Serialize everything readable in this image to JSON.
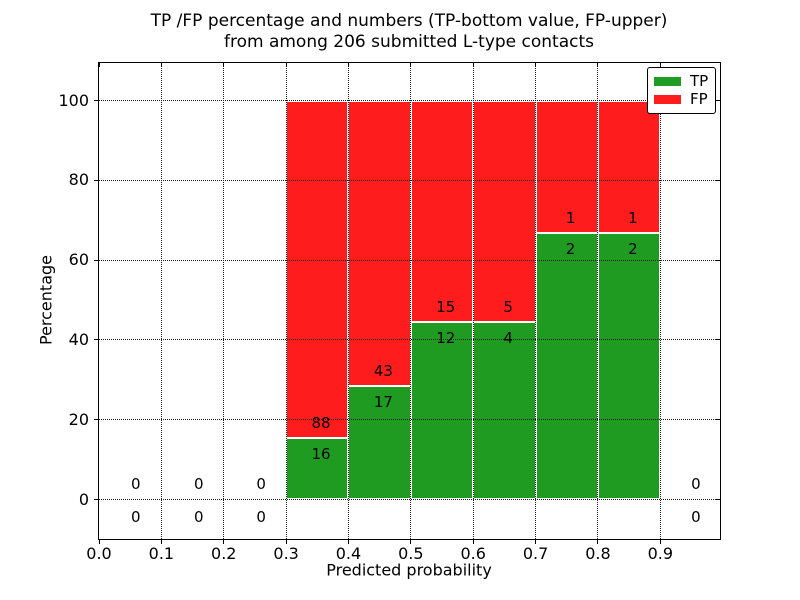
{
  "chart_data": {
    "type": "bar",
    "stacked": true,
    "title_line1": "TP /FP percentage and numbers (TP-bottom value, FP-upper)",
    "title_line2": "from among 206 submitted L-type contacts",
    "xlabel": "Predicted probability",
    "ylabel": "Percentage",
    "x_ticks": [
      "0.0",
      "0.1",
      "0.2",
      "0.3",
      "0.4",
      "0.5",
      "0.6",
      "0.7",
      "0.8",
      "0.9"
    ],
    "y_ticks": [
      "0",
      "20",
      "40",
      "60",
      "80",
      "100"
    ],
    "xlim": [
      0.0,
      0.997
    ],
    "ylim": [
      -10.2,
      109.4
    ],
    "grid": true,
    "total_contacts": 206,
    "categories": [
      "0.3-0.4",
      "0.4-0.5",
      "0.5-0.6",
      "0.6-0.7",
      "0.7-0.8",
      "0.8-0.9"
    ],
    "series": [
      {
        "name": "TP",
        "values": [
          16,
          17,
          12,
          4,
          2,
          2
        ]
      },
      {
        "name": "FP",
        "values": [
          88,
          43,
          15,
          5,
          1,
          1
        ]
      }
    ],
    "bins": [
      {
        "x0": 0.3,
        "x1": 0.4,
        "tp_count": 16,
        "fp_count": 88,
        "tp_pct": 15.38,
        "fp_pct": 84.62
      },
      {
        "x0": 0.4,
        "x1": 0.5,
        "tp_count": 17,
        "fp_count": 43,
        "tp_pct": 28.33,
        "fp_pct": 71.67
      },
      {
        "x0": 0.5,
        "x1": 0.6,
        "tp_count": 12,
        "fp_count": 15,
        "tp_pct": 44.44,
        "fp_pct": 55.56
      },
      {
        "x0": 0.6,
        "x1": 0.7,
        "tp_count": 4,
        "fp_count": 5,
        "tp_pct": 44.44,
        "fp_pct": 55.56
      },
      {
        "x0": 0.7,
        "x1": 0.8,
        "tp_count": 2,
        "fp_count": 1,
        "tp_pct": 66.67,
        "fp_pct": 33.33
      },
      {
        "x0": 0.8,
        "x1": 0.9,
        "tp_count": 2,
        "fp_count": 1,
        "tp_pct": 66.67,
        "fp_pct": 33.33
      }
    ],
    "empty_bins": [
      {
        "x": 0.059,
        "fp_count": 0,
        "tp_count": 0
      },
      {
        "x": 0.16,
        "fp_count": 0,
        "tp_count": 0
      },
      {
        "x": 0.26,
        "fp_count": 0,
        "tp_count": 0
      },
      {
        "x": 0.957,
        "fp_count": 0,
        "tp_count": 0
      }
    ],
    "legend": {
      "position": "upper right",
      "entries": [
        {
          "label": "TP",
          "color": "#1f9b22"
        },
        {
          "label": "FP",
          "color": "#ff1c1c"
        }
      ]
    },
    "colors": {
      "tp_green": "#1f9b22",
      "fp_red": "#ff1c1c",
      "axis": "#000000",
      "background": "#ffffff"
    }
  }
}
